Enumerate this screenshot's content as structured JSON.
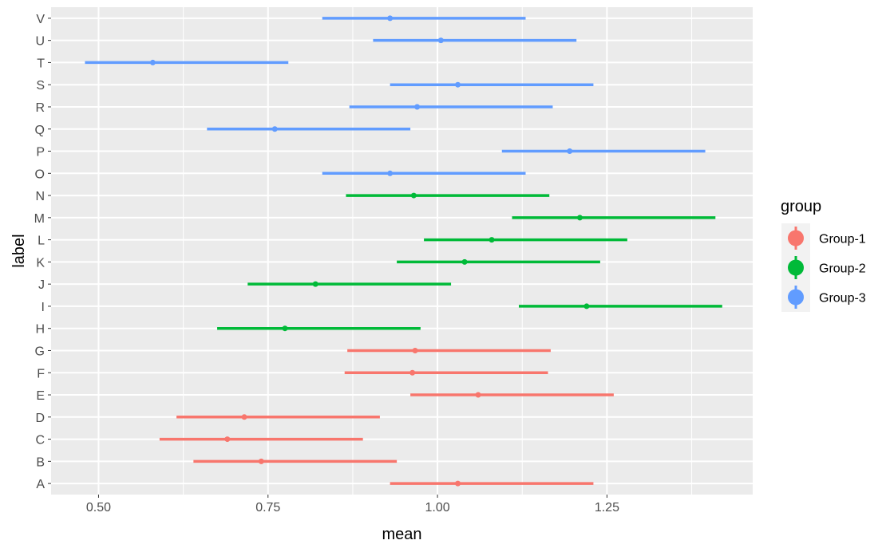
{
  "chart_data": {
    "type": "errorbar",
    "orientation": "horizontal",
    "xlabel": "mean",
    "ylabel": "label",
    "xlim": [
      0.43,
      1.465
    ],
    "xticks": [
      0.5,
      0.75,
      1.0,
      1.25
    ],
    "xtick_labels": [
      "0.50",
      "0.75",
      "1.00",
      "1.25"
    ],
    "grid": true,
    "background": "#ebebeb",
    "legend": {
      "title": "group",
      "placement": "right",
      "entries": [
        {
          "name": "Group-1",
          "color": "#f8766d"
        },
        {
          "name": "Group-2",
          "color": "#00ba38"
        },
        {
          "name": "Group-3",
          "color": "#619cff"
        }
      ]
    },
    "categories": [
      "A",
      "B",
      "C",
      "D",
      "E",
      "F",
      "G",
      "H",
      "I",
      "J",
      "K",
      "L",
      "M",
      "N",
      "O",
      "P",
      "Q",
      "R",
      "S",
      "T",
      "U",
      "V"
    ],
    "points": [
      {
        "label": "A",
        "group": "Group-1",
        "mean": 1.03,
        "lower": 0.93,
        "upper": 1.23
      },
      {
        "label": "B",
        "group": "Group-1",
        "mean": 0.74,
        "lower": 0.64,
        "upper": 0.94
      },
      {
        "label": "C",
        "group": "Group-1",
        "mean": 0.69,
        "lower": 0.59,
        "upper": 0.89
      },
      {
        "label": "D",
        "group": "Group-1",
        "mean": 0.715,
        "lower": 0.615,
        "upper": 0.915
      },
      {
        "label": "E",
        "group": "Group-1",
        "mean": 1.06,
        "lower": 0.96,
        "upper": 1.26
      },
      {
        "label": "F",
        "group": "Group-1",
        "mean": 0.963,
        "lower": 0.863,
        "upper": 1.163
      },
      {
        "label": "G",
        "group": "Group-1",
        "mean": 0.967,
        "lower": 0.867,
        "upper": 1.167
      },
      {
        "label": "H",
        "group": "Group-2",
        "mean": 0.775,
        "lower": 0.675,
        "upper": 0.975
      },
      {
        "label": "I",
        "group": "Group-2",
        "mean": 1.22,
        "lower": 1.12,
        "upper": 1.42
      },
      {
        "label": "J",
        "group": "Group-2",
        "mean": 0.82,
        "lower": 0.72,
        "upper": 1.02
      },
      {
        "label": "K",
        "group": "Group-2",
        "mean": 1.04,
        "lower": 0.94,
        "upper": 1.24
      },
      {
        "label": "L",
        "group": "Group-2",
        "mean": 1.08,
        "lower": 0.98,
        "upper": 1.28
      },
      {
        "label": "M",
        "group": "Group-2",
        "mean": 1.21,
        "lower": 1.11,
        "upper": 1.41
      },
      {
        "label": "N",
        "group": "Group-2",
        "mean": 0.965,
        "lower": 0.865,
        "upper": 1.165
      },
      {
        "label": "O",
        "group": "Group-3",
        "mean": 0.93,
        "lower": 0.83,
        "upper": 1.13
      },
      {
        "label": "P",
        "group": "Group-3",
        "mean": 1.195,
        "lower": 1.095,
        "upper": 1.395
      },
      {
        "label": "Q",
        "group": "Group-3",
        "mean": 0.76,
        "lower": 0.66,
        "upper": 0.96
      },
      {
        "label": "R",
        "group": "Group-3",
        "mean": 0.97,
        "lower": 0.87,
        "upper": 1.17
      },
      {
        "label": "S",
        "group": "Group-3",
        "mean": 1.03,
        "lower": 0.93,
        "upper": 1.23
      },
      {
        "label": "T",
        "group": "Group-3",
        "mean": 0.58,
        "lower": 0.48,
        "upper": 0.78
      },
      {
        "label": "U",
        "group": "Group-3",
        "mean": 1.005,
        "lower": 0.905,
        "upper": 1.205
      },
      {
        "label": "V",
        "group": "Group-3",
        "mean": 0.93,
        "lower": 0.83,
        "upper": 1.13
      }
    ]
  }
}
